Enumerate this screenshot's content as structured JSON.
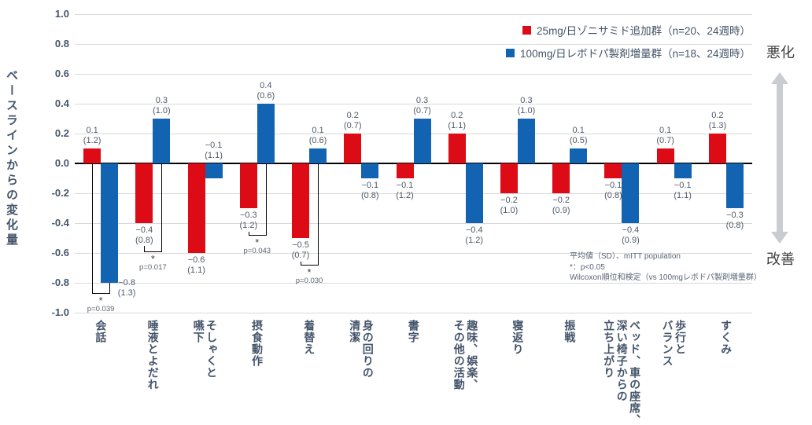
{
  "chart_data": {
    "type": "bar",
    "title": "",
    "xlabel": "",
    "ylabel": "ベースラインからの変化量",
    "ylim": [
      -1.0,
      1.0
    ],
    "ytick_step": 0.2,
    "grid": true,
    "legend_position": "top-right",
    "categories": [
      "会話",
      "唾液とよだれ",
      "そしゃくと\n嚥下",
      "摂食動作",
      "着替え",
      "身の回りの\n清潔",
      "書字",
      "趣味、娯楽、\nその他の活動",
      "寝返り",
      "振戦",
      "ベッド、車の座席、\n深い椅子からの\n立ち上がり",
      "歩行と\nバランス",
      "すくみ"
    ],
    "series": [
      {
        "name": "25mg/日ゾニサミド追加群（n=20、24週時）",
        "color": "#dc0b16",
        "values": [
          0.1,
          -0.4,
          -0.6,
          -0.3,
          -0.5,
          0.2,
          -0.1,
          0.2,
          -0.2,
          -0.2,
          -0.1,
          0.1,
          0.2
        ],
        "sd": [
          1.2,
          0.8,
          1.1,
          1.2,
          0.7,
          0.7,
          1.2,
          1.1,
          1.0,
          0.9,
          0.8,
          0.7,
          1.3
        ]
      },
      {
        "name": "100mg/日レボドパ製剤増量群（n=18、24週時）",
        "color": "#1263b2",
        "values": [
          -0.8,
          0.3,
          -0.1,
          0.4,
          0.1,
          -0.1,
          0.3,
          -0.4,
          0.3,
          0.1,
          -0.4,
          -0.1,
          -0.3
        ],
        "sd": [
          1.3,
          1.0,
          1.1,
          0.6,
          0.6,
          0.8,
          0.7,
          1.2,
          1.0,
          0.5,
          0.9,
          1.1,
          0.8
        ]
      }
    ],
    "label_overrides": [
      {
        "series": 1,
        "index": 0,
        "dx": 22,
        "dy": -9
      },
      {
        "series": 1,
        "index": 2,
        "above_axis": true
      }
    ],
    "significance": [
      {
        "category_index": 0,
        "star": "*",
        "p_label": "p=0.039",
        "level": -0.87,
        "left_from": 0,
        "right_from": -0.8
      },
      {
        "category_index": 1,
        "star": "*",
        "p_label": "p=0.017",
        "level": -0.59,
        "left_from": -0.55,
        "right_from": 0
      },
      {
        "category_index": 3,
        "star": "*",
        "p_label": "p=0.043",
        "level": -0.48,
        "left_from": -0.46,
        "right_from": 0
      },
      {
        "category_index": 4,
        "star": "*",
        "p_label": "p=0.030",
        "level": -0.68,
        "left_from": -0.66,
        "right_from": 0
      }
    ],
    "annotations": {
      "worse": "悪化",
      "better": "改善",
      "notes": [
        "平均値（SD）、mITT population",
        "*：p<0.05",
        "Wilcoxon順位和検定（vs 100mgレボドパ製剤増量群）"
      ]
    }
  },
  "axis": {
    "yticks": [
      "1.0",
      "0.8",
      "0.6",
      "0.4",
      "0.2",
      "0.0",
      "-0.2",
      "-0.4",
      "-0.6",
      "-0.8",
      "-1.0"
    ]
  }
}
